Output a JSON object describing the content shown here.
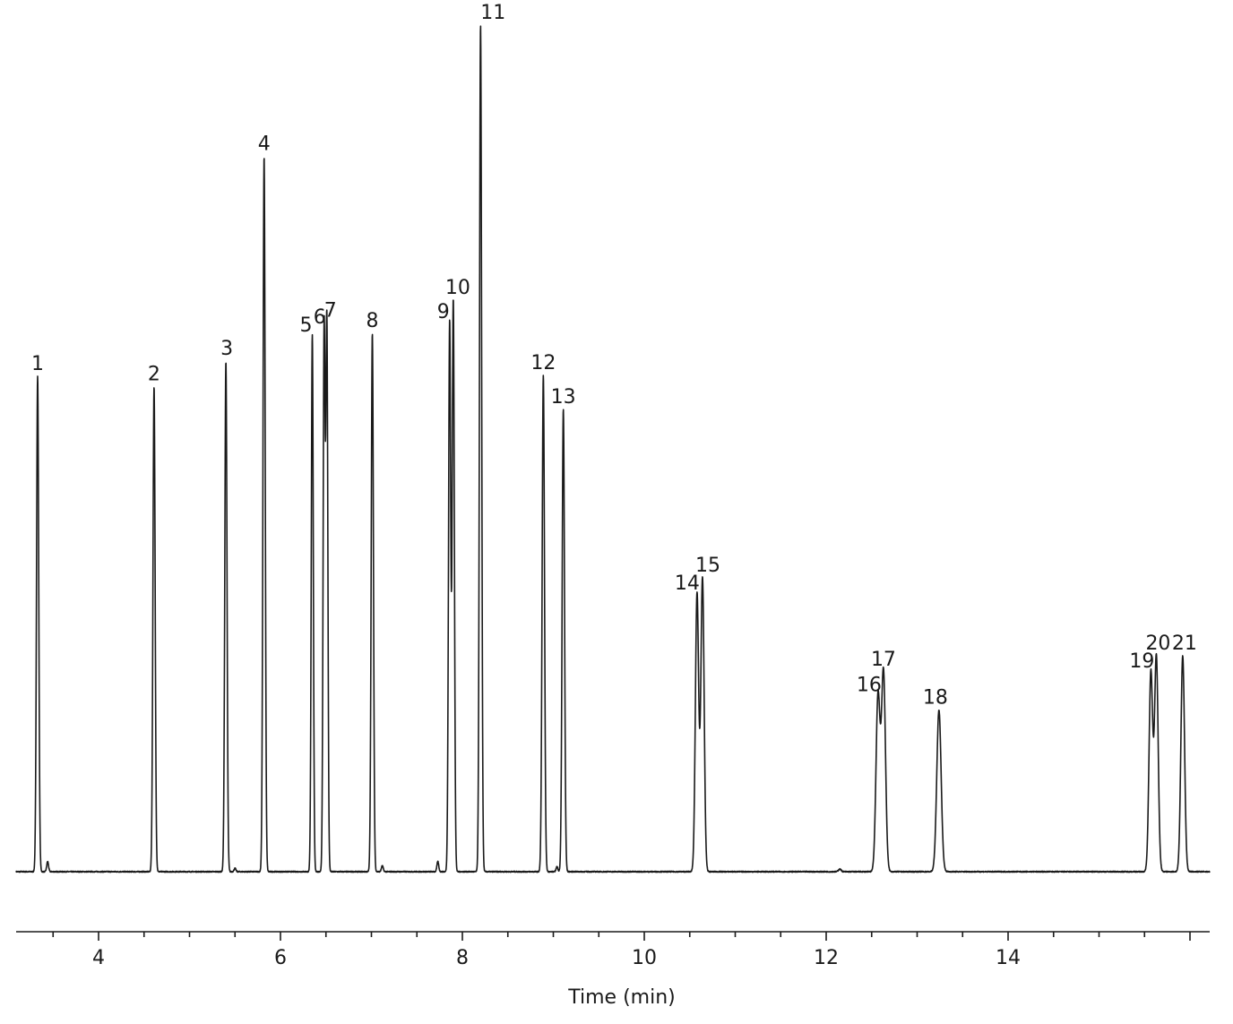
{
  "chart_data": {
    "type": "line",
    "title": "",
    "xlabel": "Time (min)",
    "ylabel": "",
    "xlim": [
      3.1,
      16.2
    ],
    "ylim": [
      0,
      100
    ],
    "x_ticks_major": [
      4,
      6,
      8,
      10,
      12,
      14,
      16
    ],
    "x_tick_labels": [
      "4",
      "6",
      "8",
      "10",
      "12",
      "14"
    ],
    "x_ticks_minor_step": 0.5,
    "grid": false,
    "legend": "none",
    "line_color": "#1a1a1a",
    "peaks": [
      {
        "label": "1",
        "rt": 3.33,
        "height": 58.5,
        "width": 0.012
      },
      {
        "label": "2",
        "rt": 4.61,
        "height": 57.3,
        "width": 0.012
      },
      {
        "label": "3",
        "rt": 5.4,
        "height": 60.3,
        "width": 0.012
      },
      {
        "label": "4",
        "rt": 5.82,
        "height": 84.5,
        "width": 0.012
      },
      {
        "label": "5",
        "rt": 6.35,
        "height": 63.5,
        "width": 0.011
      },
      {
        "label": "6",
        "rt": 6.48,
        "height": 64.0,
        "width": 0.011
      },
      {
        "label": "7",
        "rt": 6.51,
        "height": 64.8,
        "width": 0.011
      },
      {
        "label": "8",
        "rt": 7.01,
        "height": 63.6,
        "width": 0.012
      },
      {
        "label": "9",
        "rt": 7.86,
        "height": 65.0,
        "width": 0.012
      },
      {
        "label": "10",
        "rt": 7.9,
        "height": 67.5,
        "width": 0.012
      },
      {
        "label": "11",
        "rt": 8.2,
        "height": 100.0,
        "width": 0.012
      },
      {
        "label": "12",
        "rt": 8.89,
        "height": 58.6,
        "width": 0.013
      },
      {
        "label": "13",
        "rt": 9.11,
        "height": 54.6,
        "width": 0.013
      },
      {
        "label": "14",
        "rt": 10.58,
        "height": 32.9,
        "width": 0.018
      },
      {
        "label": "15",
        "rt": 10.64,
        "height": 34.7,
        "width": 0.018
      },
      {
        "label": "16",
        "rt": 12.57,
        "height": 20.8,
        "width": 0.022
      },
      {
        "label": "17",
        "rt": 12.63,
        "height": 23.6,
        "width": 0.022
      },
      {
        "label": "18",
        "rt": 13.24,
        "height": 19.1,
        "width": 0.024
      },
      {
        "label": "19",
        "rt": 15.57,
        "height": 23.6,
        "width": 0.02
      },
      {
        "label": "20",
        "rt": 15.63,
        "height": 25.5,
        "width": 0.02
      },
      {
        "label": "21",
        "rt": 15.92,
        "height": 25.5,
        "width": 0.02
      }
    ],
    "minor_peaks": [
      {
        "rt": 3.44,
        "height": 1.2,
        "width": 0.01
      },
      {
        "rt": 5.5,
        "height": 0.4,
        "width": 0.01
      },
      {
        "rt": 7.12,
        "height": 0.7,
        "width": 0.01
      },
      {
        "rt": 7.73,
        "height": 1.2,
        "width": 0.01
      },
      {
        "rt": 9.04,
        "height": 0.6,
        "width": 0.01
      },
      {
        "rt": 12.15,
        "height": 0.3,
        "width": 0.015
      }
    ]
  }
}
